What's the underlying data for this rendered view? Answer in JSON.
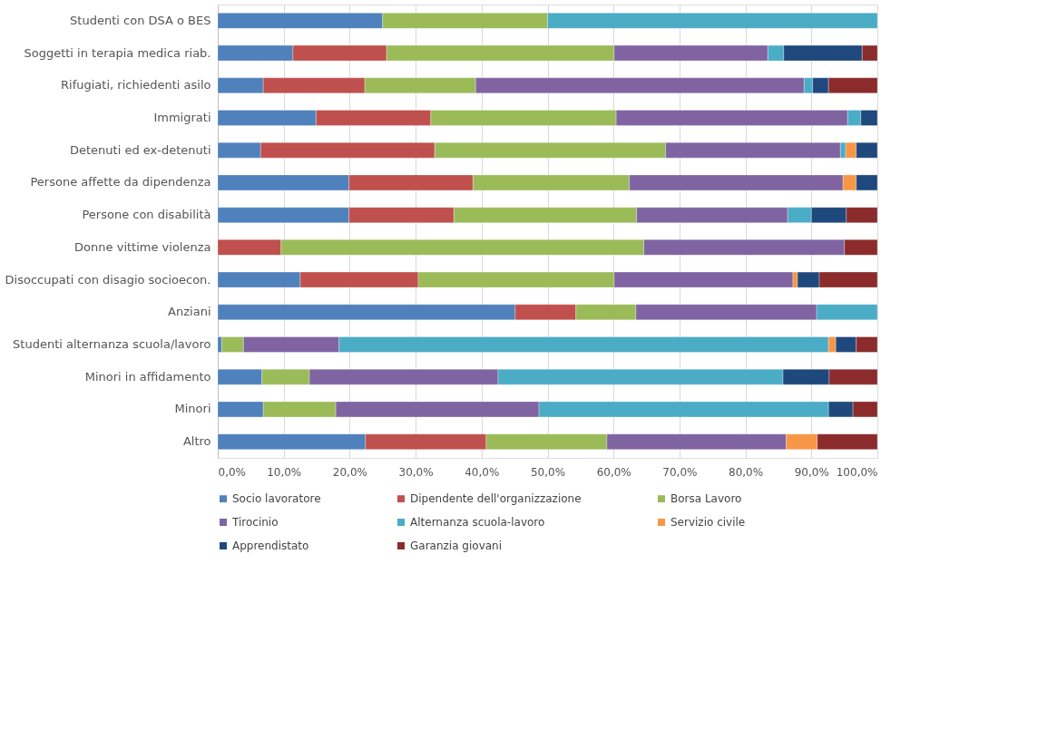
{
  "chart_data": {
    "type": "bar",
    "orientation": "horizontal",
    "stacked": true,
    "categories": [
      "Studenti con DSA o BES",
      "Soggetti in terapia medica riab.",
      "Rifugiati, richiedenti asilo",
      "Immigrati",
      "Detenuti ed ex-detenuti",
      "Persone affette da dipendenza",
      "Persone con disabilità",
      "Donne vittime violenza",
      "Disoccupati con disagio socioecon.",
      "Anziani",
      "Studenti alternanza scuola/lavoro",
      "Minori in affidamento",
      "Minori",
      "Altro"
    ],
    "series": [
      {
        "name": "Socio lavoratore",
        "color": "#4f81bd",
        "values": [
          25,
          11.4,
          6.9,
          14.9,
          6.5,
          19.9,
          19.9,
          null,
          12.5,
          45.1,
          0.6,
          6.7,
          6.9,
          22.4
        ]
      },
      {
        "name": "Dipendente dell'organizzazione",
        "color": "#c0504d",
        "values": [
          null,
          14.2,
          15.4,
          17.4,
          26.4,
          18.8,
          15.9,
          9.6,
          17.9,
          9.2,
          null,
          null,
          null,
          18.3
        ]
      },
      {
        "name": "Borsa Lavoro",
        "color": "#9bbb59",
        "values": [
          25,
          34.5,
          16.8,
          28.1,
          35.0,
          23.7,
          27.7,
          55.0,
          29.7,
          9.1,
          3.3,
          7.2,
          11.0,
          18.3
        ]
      },
      {
        "name": "Tirocinio",
        "color": "#8064a2",
        "values": [
          null,
          23.3,
          49.8,
          35.1,
          26.5,
          32.4,
          22.9,
          30.4,
          27.1,
          27.4,
          14.5,
          28.6,
          30.8,
          27.2
        ]
      },
      {
        "name": "Alternanza scuola-lavoro",
        "color": "#4bacc6",
        "values": [
          50,
          2.4,
          1.3,
          2.0,
          0.8,
          null,
          3.6,
          null,
          null,
          9.2,
          74.2,
          43.2,
          43.9,
          null
        ]
      },
      {
        "name": "Servizio civile",
        "color": "#f79646",
        "values": [
          null,
          null,
          null,
          null,
          1.6,
          2.0,
          null,
          null,
          0.7,
          null,
          1.1,
          null,
          null,
          4.7
        ]
      },
      {
        "name": "Apprendistato",
        "color": "#1f497d",
        "values": [
          null,
          11.9,
          2.4,
          2.5,
          3.2,
          3.2,
          5.3,
          null,
          3.3,
          null,
          3.1,
          7.0,
          3.7,
          null
        ]
      },
      {
        "name": "Garanzia giovani",
        "color": "#8b2b2b",
        "values": [
          null,
          2.3,
          7.4,
          null,
          null,
          null,
          4.7,
          5.0,
          8.8,
          null,
          3.2,
          7.3,
          3.7,
          9.1
        ]
      }
    ],
    "xlim": [
      0,
      100
    ],
    "xticks": [
      {
        "value": 0,
        "label": "0,0%"
      },
      {
        "value": 10,
        "label": "10,0%"
      },
      {
        "value": 20,
        "label": "20,0%"
      },
      {
        "value": 30,
        "label": "30,0%"
      },
      {
        "value": 40,
        "label": "40,0%"
      },
      {
        "value": 50,
        "label": "50,0%"
      },
      {
        "value": 60,
        "label": "60,0%"
      },
      {
        "value": 70,
        "label": "70,0%"
      },
      {
        "value": 80,
        "label": "80,0%"
      },
      {
        "value": 90,
        "label": "90,0%"
      },
      {
        "value": 100,
        "label": "100,0%"
      }
    ],
    "grid": "x",
    "legend": "bottom"
  }
}
